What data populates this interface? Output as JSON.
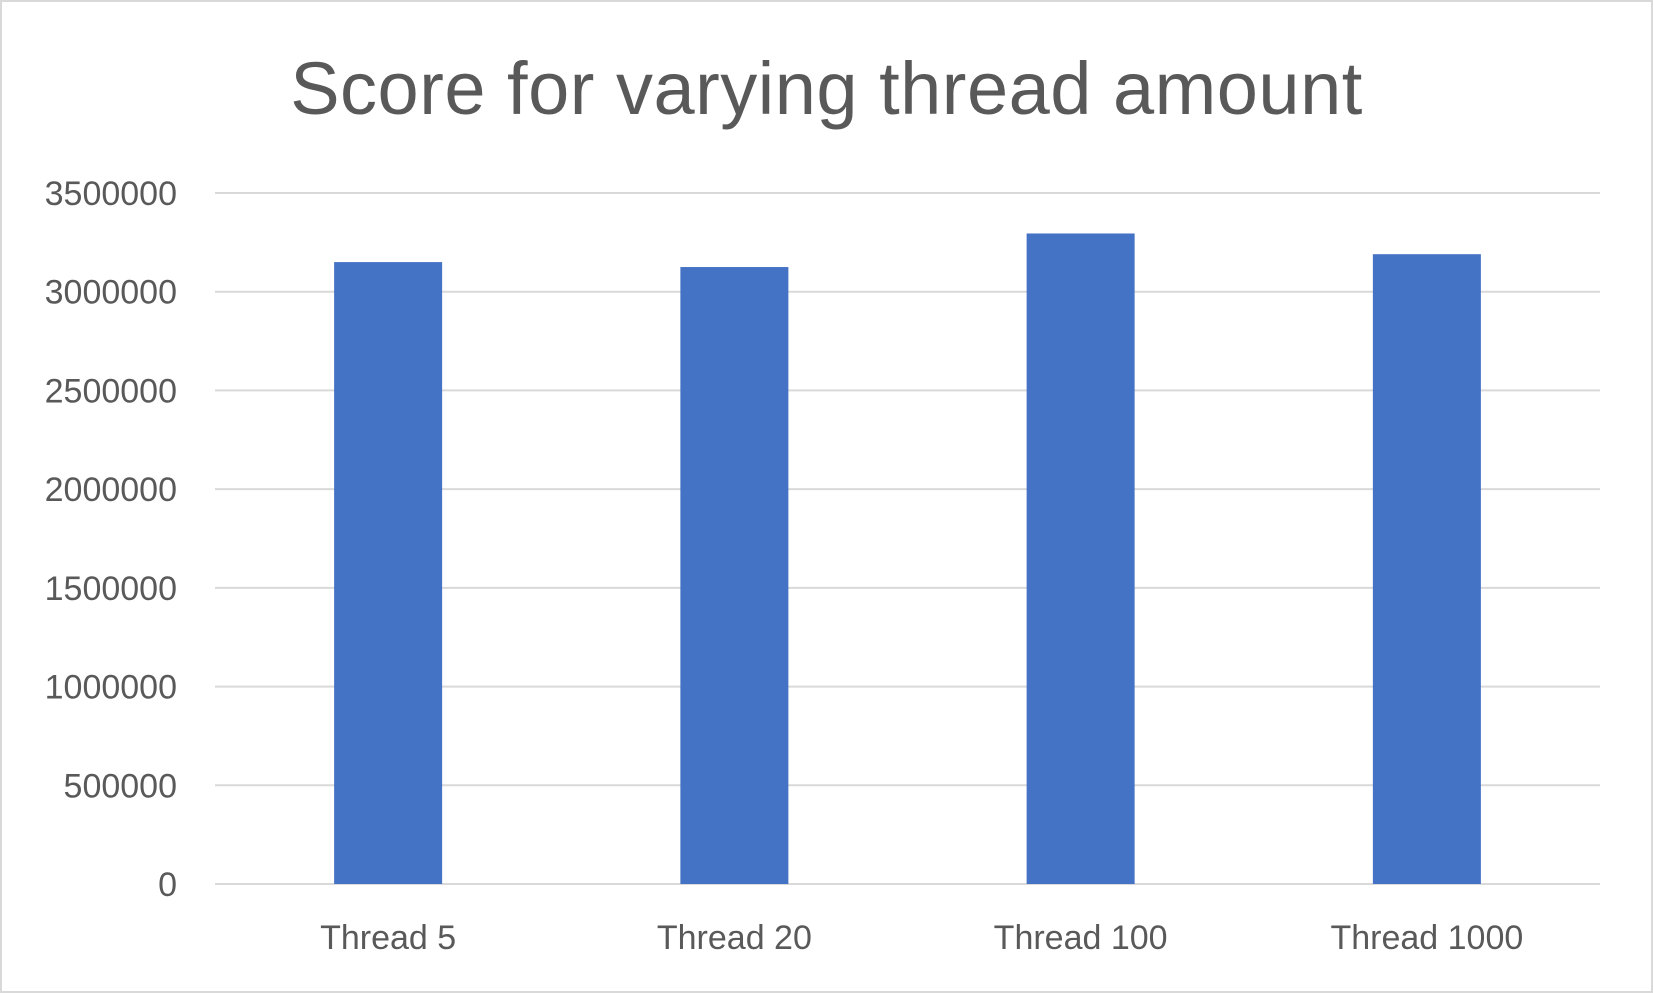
{
  "chart_data": {
    "type": "bar",
    "title": "Score for varying thread amount",
    "xlabel": "",
    "ylabel": "",
    "categories": [
      "Thread 5",
      "Thread 20",
      "Thread 100",
      "Thread 1000"
    ],
    "series": [
      {
        "values": [
          3150000,
          3125000,
          3295000,
          3190000
        ],
        "color": "#4472c4"
      }
    ],
    "ylim": [
      0,
      3500000
    ],
    "yticks": [
      "0",
      "500000",
      "1000000",
      "1500000",
      "2000000",
      "2500000",
      "3000000",
      "3500000"
    ],
    "grid": true,
    "legend": "none"
  }
}
